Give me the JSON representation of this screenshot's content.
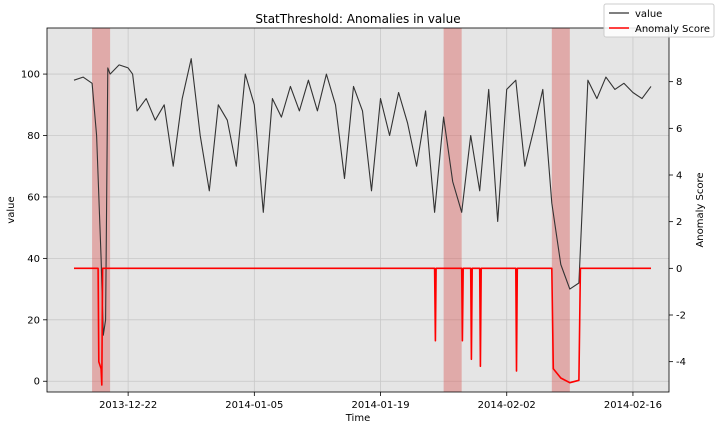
{
  "chart_data": {
    "type": "line",
    "title": "StatThreshold: Anomalies in value",
    "xlabel": "Time",
    "ylabel": "value",
    "ylabel_right": "Anomaly Score",
    "x_ticks": [
      "2013-12-22",
      "2014-01-05",
      "2014-01-19",
      "2014-02-02",
      "2014-02-16"
    ],
    "x_range": [
      "2013-12-13",
      "2014-02-20"
    ],
    "ylim": [
      -3.5,
      115
    ],
    "ylim_right": [
      -5.3,
      10.3
    ],
    "y_ticks": [
      0,
      20,
      40,
      60,
      80,
      100
    ],
    "y_ticks_right": [
      -4,
      -2,
      0,
      2,
      4,
      6,
      8
    ],
    "grid": true,
    "legend_position": "top-right",
    "series": [
      {
        "name": "value",
        "axis": "left",
        "color": "#333333",
        "points": [
          [
            "2013-12-16",
            98
          ],
          [
            "2013-12-17",
            99
          ],
          [
            "2013-12-18",
            97
          ],
          [
            "2013-12-18T12",
            80
          ],
          [
            "2013-12-19",
            40
          ],
          [
            "2013-12-19T06",
            15
          ],
          [
            "2013-12-19T12",
            20
          ],
          [
            "2013-12-19T18",
            102
          ],
          [
            "2013-12-20",
            100
          ],
          [
            "2013-12-21",
            103
          ],
          [
            "2013-12-22",
            102
          ],
          [
            "2013-12-22T12",
            100
          ],
          [
            "2013-12-23",
            88
          ],
          [
            "2013-12-24",
            92
          ],
          [
            "2013-12-25",
            85
          ],
          [
            "2013-12-26",
            90
          ],
          [
            "2013-12-27",
            70
          ],
          [
            "2013-12-28",
            92
          ],
          [
            "2013-12-29",
            105
          ],
          [
            "2013-12-30",
            80
          ],
          [
            "2013-12-31",
            62
          ],
          [
            "2014-01-01",
            90
          ],
          [
            "2014-01-02",
            85
          ],
          [
            "2014-01-03",
            70
          ],
          [
            "2014-01-04",
            100
          ],
          [
            "2014-01-05",
            90
          ],
          [
            "2014-01-06",
            55
          ],
          [
            "2014-01-07",
            92
          ],
          [
            "2014-01-08",
            86
          ],
          [
            "2014-01-09",
            96
          ],
          [
            "2014-01-10",
            88
          ],
          [
            "2014-01-11",
            98
          ],
          [
            "2014-01-12",
            88
          ],
          [
            "2014-01-13",
            100
          ],
          [
            "2014-01-14",
            90
          ],
          [
            "2014-01-15",
            66
          ],
          [
            "2014-01-16",
            96
          ],
          [
            "2014-01-17",
            88
          ],
          [
            "2014-01-18",
            62
          ],
          [
            "2014-01-19",
            92
          ],
          [
            "2014-01-20",
            80
          ],
          [
            "2014-01-21",
            94
          ],
          [
            "2014-01-22",
            84
          ],
          [
            "2014-01-23",
            70
          ],
          [
            "2014-01-24",
            88
          ],
          [
            "2014-01-25",
            55
          ],
          [
            "2014-01-26",
            86
          ],
          [
            "2014-01-27",
            65
          ],
          [
            "2014-01-28",
            55
          ],
          [
            "2014-01-29",
            80
          ],
          [
            "2014-01-30",
            62
          ],
          [
            "2014-01-31",
            95
          ],
          [
            "2014-02-01",
            52
          ],
          [
            "2014-02-02",
            95
          ],
          [
            "2014-02-03",
            98
          ],
          [
            "2014-02-04",
            70
          ],
          [
            "2014-02-05",
            82
          ],
          [
            "2014-02-06",
            95
          ],
          [
            "2014-02-07",
            58
          ],
          [
            "2014-02-08",
            38
          ],
          [
            "2014-02-09",
            30
          ],
          [
            "2014-02-10",
            32
          ],
          [
            "2014-02-11",
            98
          ],
          [
            "2014-02-12",
            92
          ],
          [
            "2014-02-13",
            99
          ],
          [
            "2014-02-14",
            95
          ],
          [
            "2014-02-15",
            97
          ],
          [
            "2014-02-16",
            94
          ],
          [
            "2014-02-17",
            92
          ],
          [
            "2014-02-18",
            96
          ]
        ]
      },
      {
        "name": "Anomaly Score",
        "axis": "right",
        "color": "#ff0000",
        "points": [
          [
            "2013-12-16",
            0
          ],
          [
            "2013-12-18T16",
            0
          ],
          [
            "2013-12-18T18",
            -4
          ],
          [
            "2013-12-19",
            -4.3
          ],
          [
            "2013-12-19T02",
            -5
          ],
          [
            "2013-12-19T04",
            0
          ],
          [
            "2014-01-25",
            0
          ],
          [
            "2014-01-25T02",
            -3.1
          ],
          [
            "2014-01-25T04",
            0
          ],
          [
            "2014-01-28",
            0
          ],
          [
            "2014-01-28T02",
            -3.1
          ],
          [
            "2014-01-28T04",
            0
          ],
          [
            "2014-01-29",
            0
          ],
          [
            "2014-01-29T02",
            -3.9
          ],
          [
            "2014-01-29T04",
            0
          ],
          [
            "2014-01-30",
            0
          ],
          [
            "2014-01-30T02",
            -4.2
          ],
          [
            "2014-01-30T04",
            0
          ],
          [
            "2014-02-03",
            0
          ],
          [
            "2014-02-03T02",
            -4.4
          ],
          [
            "2014-02-03T04",
            0
          ],
          [
            "2014-02-07",
            0
          ],
          [
            "2014-02-07T04",
            -4.3
          ],
          [
            "2014-02-08",
            -4.7
          ],
          [
            "2014-02-09",
            -4.9
          ],
          [
            "2014-02-10",
            -4.8
          ],
          [
            "2014-02-10T04",
            0
          ],
          [
            "2014-02-18",
            0
          ]
        ]
      }
    ],
    "anomaly_regions": [
      [
        "2013-12-18",
        "2013-12-20"
      ],
      [
        "2014-01-26",
        "2014-01-28"
      ],
      [
        "2014-02-07",
        "2014-02-09"
      ]
    ]
  }
}
